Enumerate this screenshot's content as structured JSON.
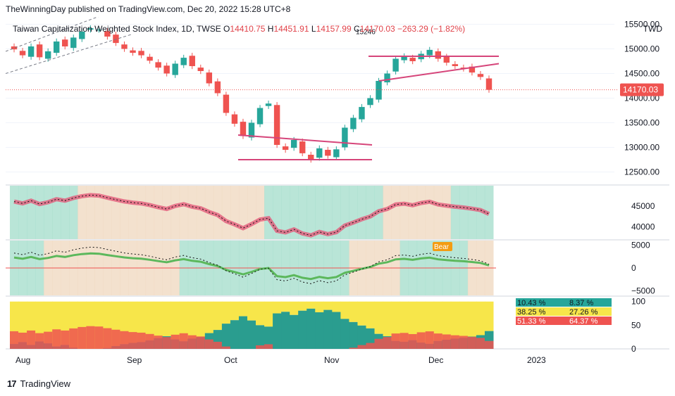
{
  "header": {
    "publisher": "TheWinningDay published on TradingView.com, Dec 20, 2022 15:28 UTC+8"
  },
  "legend": {
    "symbol": "Taiwan Capitalization Weighted Stock Index, 1D, TWSE",
    "open_label": "O",
    "open": "14410.75",
    "high_label": "H",
    "high": "14451.91",
    "low_label": "L",
    "low": "14157.99",
    "close_label": "C",
    "close": "14170.03",
    "change": "−263.29 (−1.82%)",
    "currency": "TWD"
  },
  "colors": {
    "up": "#26a69a",
    "down": "#ef5350",
    "pink": "#d6457a",
    "tealZone": "#a7dfcd",
    "tanZone": "#f0d9c2",
    "yellow": "#f7e64a",
    "grid": "#f0f3fa",
    "text": "#131722"
  },
  "footer": {
    "brand": "TradingView"
  },
  "chart_data": [
    {
      "type": "candlestick",
      "title": "Taiwan Capitalization Weighted Stock Index, 1D, TWSE",
      "price_labels": [
        "15500.00",
        "15000.00",
        "14500.00",
        "14000.00",
        "13500.00",
        "13000.00",
        "12500.00"
      ],
      "price_ticks": [
        15500,
        15000,
        14500,
        14000,
        13500,
        13000,
        12500
      ],
      "last_price": "14170.03",
      "annotation": "15246",
      "ylim": [
        12250,
        15650
      ],
      "x_labels": [
        "Aug",
        "Sep",
        "Oct",
        "Nov",
        "Dec",
        "2023"
      ],
      "closes_approx": [
        14990,
        14870,
        15050,
        14830,
        14950,
        15150,
        15050,
        15230,
        15350,
        15420,
        15390,
        15250,
        15120,
        15000,
        14920,
        14870,
        14760,
        14620,
        14500,
        14700,
        14820,
        14650,
        14550,
        14300,
        14100,
        13700,
        13480,
        13230,
        13500,
        13800,
        13890,
        13050,
        12950,
        13150,
        12880,
        12750,
        12980,
        12830,
        12960,
        13400,
        13600,
        13820,
        14000,
        14350,
        14500,
        14800,
        14850,
        14750,
        14900,
        14980,
        14800,
        14720,
        14650,
        14600,
        14520,
        14430,
        14170
      ]
    },
    {
      "type": "line",
      "title": "",
      "y_labels": [
        "45000",
        "40000"
      ],
      "y_ticks": [
        45000,
        40000
      ],
      "ylim": [
        37000,
        50000
      ]
    },
    {
      "type": "line",
      "title": "",
      "y_labels": [
        "5000",
        "0",
        "−5000"
      ],
      "y_ticks": [
        5000,
        0,
        -5000
      ],
      "ylim": [
        -6000,
        6000
      ],
      "annotation": "Bear"
    },
    {
      "type": "bar",
      "title": "",
      "y_labels": [
        "100",
        "50",
        "0"
      ],
      "y_ticks": [
        100,
        50,
        0
      ],
      "ylim": [
        0,
        110
      ],
      "readouts": [
        {
          "left": "10.43 %",
          "right": "8.37 %"
        },
        {
          "left": "38.25 %",
          "right": "27.26 %"
        },
        {
          "left": "51.33 %",
          "right": "64.37 %"
        }
      ]
    }
  ]
}
